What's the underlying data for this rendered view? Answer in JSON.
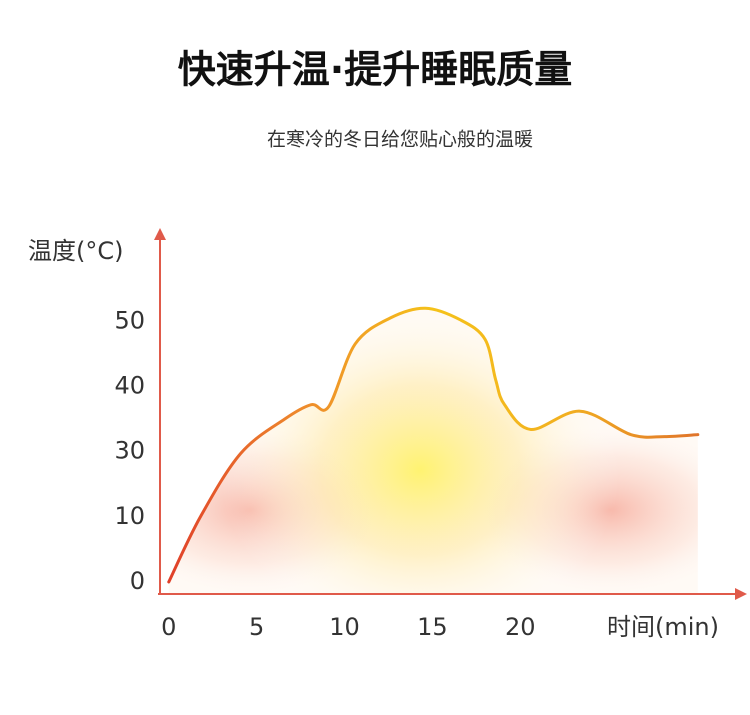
{
  "chart_data": {
    "type": "line",
    "title": "快速升温·提升睡眠质量",
    "subtitle": "在寒冷的冬日给您贴心般的温暖",
    "y_label": "温度(°C)",
    "x_label": "时间(min)",
    "y_scale": "piecewise-linear",
    "x": [
      0,
      1.8,
      4.1,
      6.6,
      8.1,
      9.1,
      10.6,
      12.6,
      14.6,
      16.6,
      18,
      18.6,
      19.1,
      20.6,
      23.4,
      26.3,
      28.2,
      30.1
    ],
    "series": [
      {
        "colors": [
          "#e0402a",
          "#ee8a2c",
          "#f5c21a",
          "#f2b020",
          "#e0742a"
        ],
        "values": [
          0,
          10,
          29.5,
          35,
          37.2,
          36.9,
          46.5,
          50.5,
          52,
          50.2,
          47.2,
          41,
          37.2,
          33.4,
          36.2,
          32.6,
          32.3,
          32.6
        ]
      }
    ],
    "xlim": [
      -0.5,
      32.5
    ],
    "xticks": [
      0,
      5,
      10,
      15,
      20
    ],
    "ylim": [
      -2,
      64
    ],
    "yticks": [
      0,
      10,
      30,
      40,
      50
    ]
  }
}
